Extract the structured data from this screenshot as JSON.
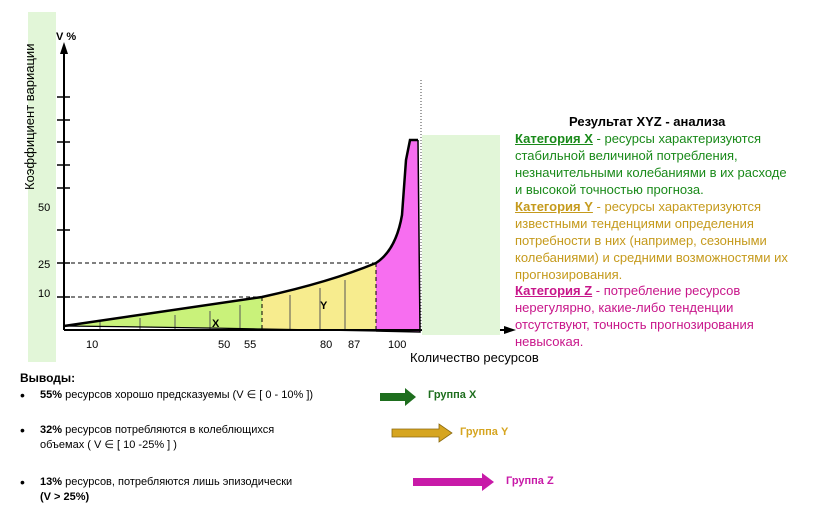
{
  "axis": {
    "y_unit": "V %",
    "y_title": "Коэффициент вариации",
    "x_title": "Количество ресурсов",
    "y_ticks": [
      "10",
      "25",
      "50"
    ],
    "x_ticks": [
      "10",
      "50",
      "55",
      "80",
      "87",
      "100"
    ]
  },
  "zones": {
    "x": "X",
    "y": "Y"
  },
  "legend": {
    "title": "Результат XYZ -  анализа",
    "x_name": "Категория  X",
    "x_text": " - ресурсы характеризуются стабильной величиной потребления, незначительными колебаниями в их расходе и высокой точностью прогноза.",
    "y_name": "Категория  Y",
    "y_text": " - ресурсы характеризуются известными тенденциями определения потребности в них (например, сезонными колебаниями) и средними возможностями их прогнозирования.",
    "z_name": "Категория  Z",
    "z_text": " - потребление ресурсов нерегулярно, какие-либо тенденции отсутствуют, точность прогнозирования невысокая."
  },
  "conclusions": {
    "title": "Выводы:",
    "items": [
      {
        "pct": "55%",
        "line1": "  ресурсов хорошо предсказуемы  (V ∈ [ 0 - 10%  ])",
        "line2": "",
        "group": "Группа X"
      },
      {
        "pct": "32%",
        "line1": "  ресурсов потребляются в колеблющихся",
        "line2": "объемах     ( V ∈ [ 10 -25% ] )",
        "group": "Группа  Y"
      },
      {
        "pct": "13%",
        "line1": "  ресурсов, потребляются лишь  эпизодически",
        "line2": "(V  > 25%)",
        "group": "Группа  Z"
      }
    ]
  },
  "colors": {
    "x": "#c9f27a",
    "y": "#f7ec8e",
    "z": "#f76ef0",
    "arrow_x": "#1e6e1e",
    "arrow_y": "#d6a520",
    "arrow_z": "#c81aa8",
    "panel": "#e2f6d8",
    "text_x": "#1a8a1a",
    "text_y": "#c59a1c",
    "text_z": "#c8168a"
  }
}
